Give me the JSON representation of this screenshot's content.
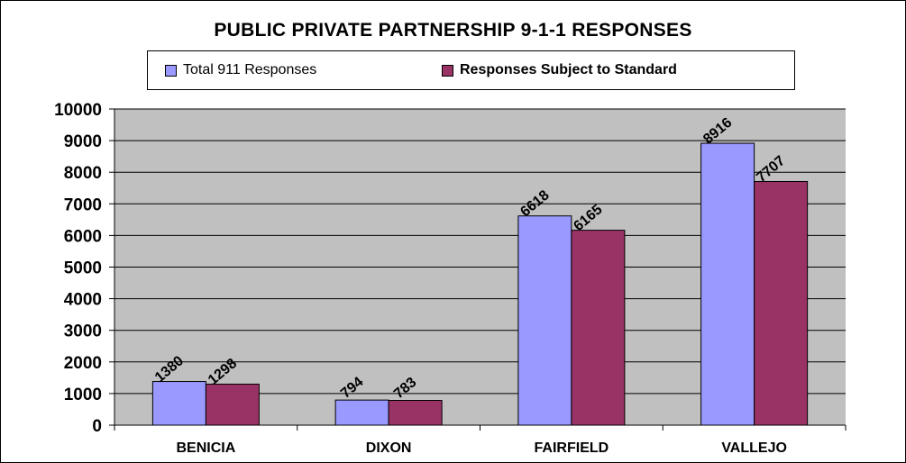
{
  "chart_data": {
    "type": "bar",
    "title": "PUBLIC PRIVATE PARTNERSHIP 9-1-1 RESPONSES",
    "categories": [
      "BENICIA",
      "DIXON",
      "FAIRFIELD",
      "VALLEJO"
    ],
    "series": [
      {
        "name": "Total 911 Responses",
        "values": [
          1380,
          794,
          6618,
          8916
        ],
        "color": "#9999ff"
      },
      {
        "name": "Responses Subject to Standard",
        "values": [
          1298,
          783,
          6165,
          7707
        ],
        "color": "#993366"
      }
    ],
    "ylim": [
      0,
      10000
    ],
    "yticks": [
      "0",
      "1000",
      "2000",
      "3000",
      "4000",
      "5000",
      "6000",
      "7000",
      "8000",
      "9000",
      "10000"
    ],
    "grid": true,
    "legend": "top",
    "plot_background": "#c0c0c0"
  }
}
